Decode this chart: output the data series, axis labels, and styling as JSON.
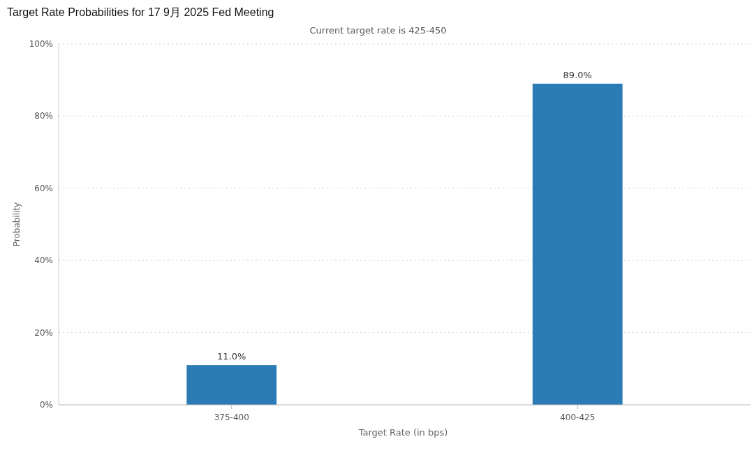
{
  "chart_data": {
    "type": "bar",
    "title": "Target Rate Probabilities for 17 9月 2025 Fed Meeting",
    "subtitle": "Current target rate is 425-450",
    "xlabel": "Target Rate (in bps)",
    "ylabel": "Probability",
    "categories": [
      "375-400",
      "400-425"
    ],
    "values": [
      11.0,
      89.0
    ],
    "value_labels": [
      "11.0%",
      "89.0%"
    ],
    "color": "#2b7bb5",
    "ylim": [
      0,
      100
    ],
    "yticks": [
      {
        "value": 0,
        "label": "0%"
      },
      {
        "value": 20,
        "label": "20%"
      },
      {
        "value": 40,
        "label": "40%"
      },
      {
        "value": 60,
        "label": "60%"
      },
      {
        "value": 80,
        "label": "80%"
      },
      {
        "value": 100,
        "label": "100%"
      }
    ],
    "grid": "y"
  }
}
